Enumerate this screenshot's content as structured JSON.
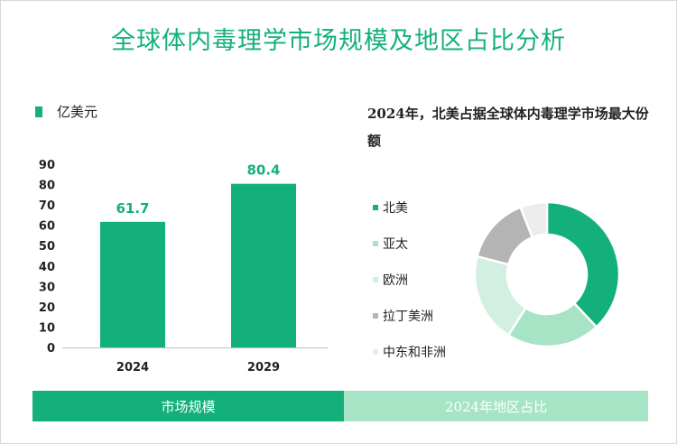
{
  "title": "全球体内毒理学市场规模及地区占比分析",
  "bar_legend": {
    "label": "亿美元",
    "color": "#14b07c"
  },
  "pie_heading": "2024年，北美占据全球体内毒理学市场最大份额",
  "footer": {
    "left": "市场规模",
    "right": "2024年地区占比"
  },
  "colors": {
    "accent": "#14b07c",
    "light": "#a6e4c5"
  },
  "chart_data": [
    {
      "type": "bar",
      "categories": [
        "2024",
        "2029"
      ],
      "values": [
        61.7,
        80.4
      ],
      "data_labels": [
        "61.7",
        "80.4"
      ],
      "y_ticks": [
        0,
        10,
        20,
        30,
        40,
        50,
        60,
        70,
        80,
        90
      ],
      "ylim": [
        0,
        90
      ],
      "ylabel": "亿美元",
      "grid": false,
      "color": "#14b07c"
    },
    {
      "type": "pie",
      "donut": true,
      "labels": [
        "北美",
        "亚太",
        "欧洲",
        "拉丁美洲",
        "中东和非洲"
      ],
      "values": [
        38,
        21,
        20,
        15,
        6
      ],
      "colors": [
        "#14b07c",
        "#a6e4c5",
        "#d2f0e2",
        "#b4b4b4",
        "#ececec"
      ],
      "legend_position": "left"
    }
  ]
}
